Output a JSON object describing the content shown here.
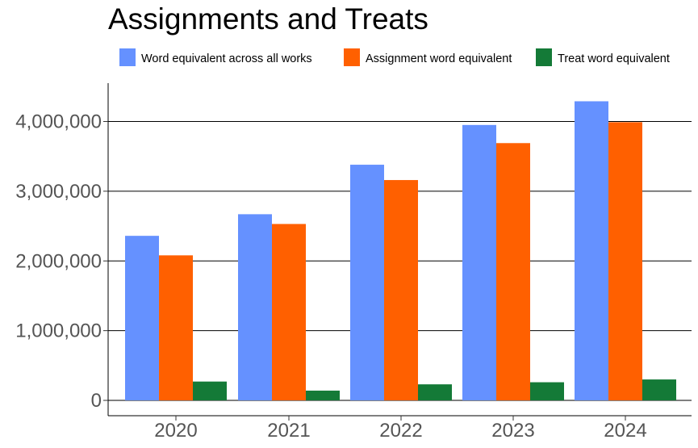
{
  "chart_data": {
    "type": "bar",
    "title": "Assignments and Treats",
    "subtitle": "",
    "xlabel": "",
    "ylabel": "",
    "categories": [
      "2020",
      "2021",
      "2022",
      "2023",
      "2024"
    ],
    "series": [
      {
        "name": "Word equivalent across all works",
        "color": "#6591FF",
        "values": [
          2360000,
          2670000,
          3380000,
          3950000,
          4290000
        ]
      },
      {
        "name": "Assignment word equivalent",
        "color": "#FF6000",
        "values": [
          2080000,
          2530000,
          3160000,
          3690000,
          3990000
        ]
      },
      {
        "name": "Treat word equivalent",
        "color": "#147A37",
        "values": [
          270000,
          140000,
          230000,
          260000,
          300000
        ]
      }
    ],
    "ylim": [
      -220000,
      4550000
    ],
    "yticks": [
      0,
      1000000,
      2000000,
      3000000,
      4000000
    ],
    "ytick_labels": [
      "0",
      "1,000,000",
      "2,000,000",
      "3,000,000",
      "4,000,000"
    ],
    "grid": "horizontal major lines",
    "legend": "top"
  }
}
